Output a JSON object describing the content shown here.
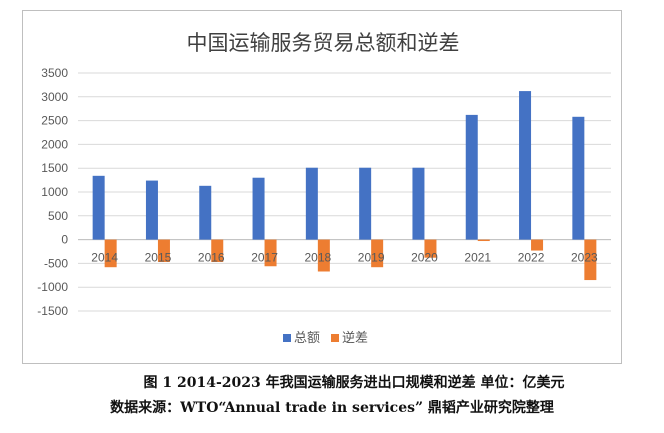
{
  "chart_data": {
    "type": "bar",
    "title": "中国运输服务贸易总额和逆差",
    "categories": [
      "2014",
      "2015",
      "2016",
      "2017",
      "2018",
      "2019",
      "2020",
      "2021",
      "2022",
      "2023"
    ],
    "series": [
      {
        "name": "总额",
        "color": "#4472C4",
        "values": [
          1340,
          1240,
          1130,
          1300,
          1510,
          1510,
          1510,
          2620,
          3120,
          2580
        ]
      },
      {
        "name": "逆差",
        "color": "#ED7D31",
        "values": [
          -580,
          -470,
          -470,
          -560,
          -670,
          -580,
          -380,
          -30,
          -230,
          -850
        ]
      }
    ],
    "ylim": [
      -1500,
      3500
    ],
    "yticks": [
      -1500,
      -1000,
      -500,
      0,
      500,
      1000,
      1500,
      2000,
      2500,
      3000,
      3500
    ],
    "grid": true,
    "legend_position": "bottom"
  },
  "captions": {
    "line1": "图 1 2014-2023 年我国运输服务进出口规模和逆差 单位：亿美元",
    "line2": "数据来源：WTO“Annual trade in services” 鼎韬产业研究院整理"
  }
}
